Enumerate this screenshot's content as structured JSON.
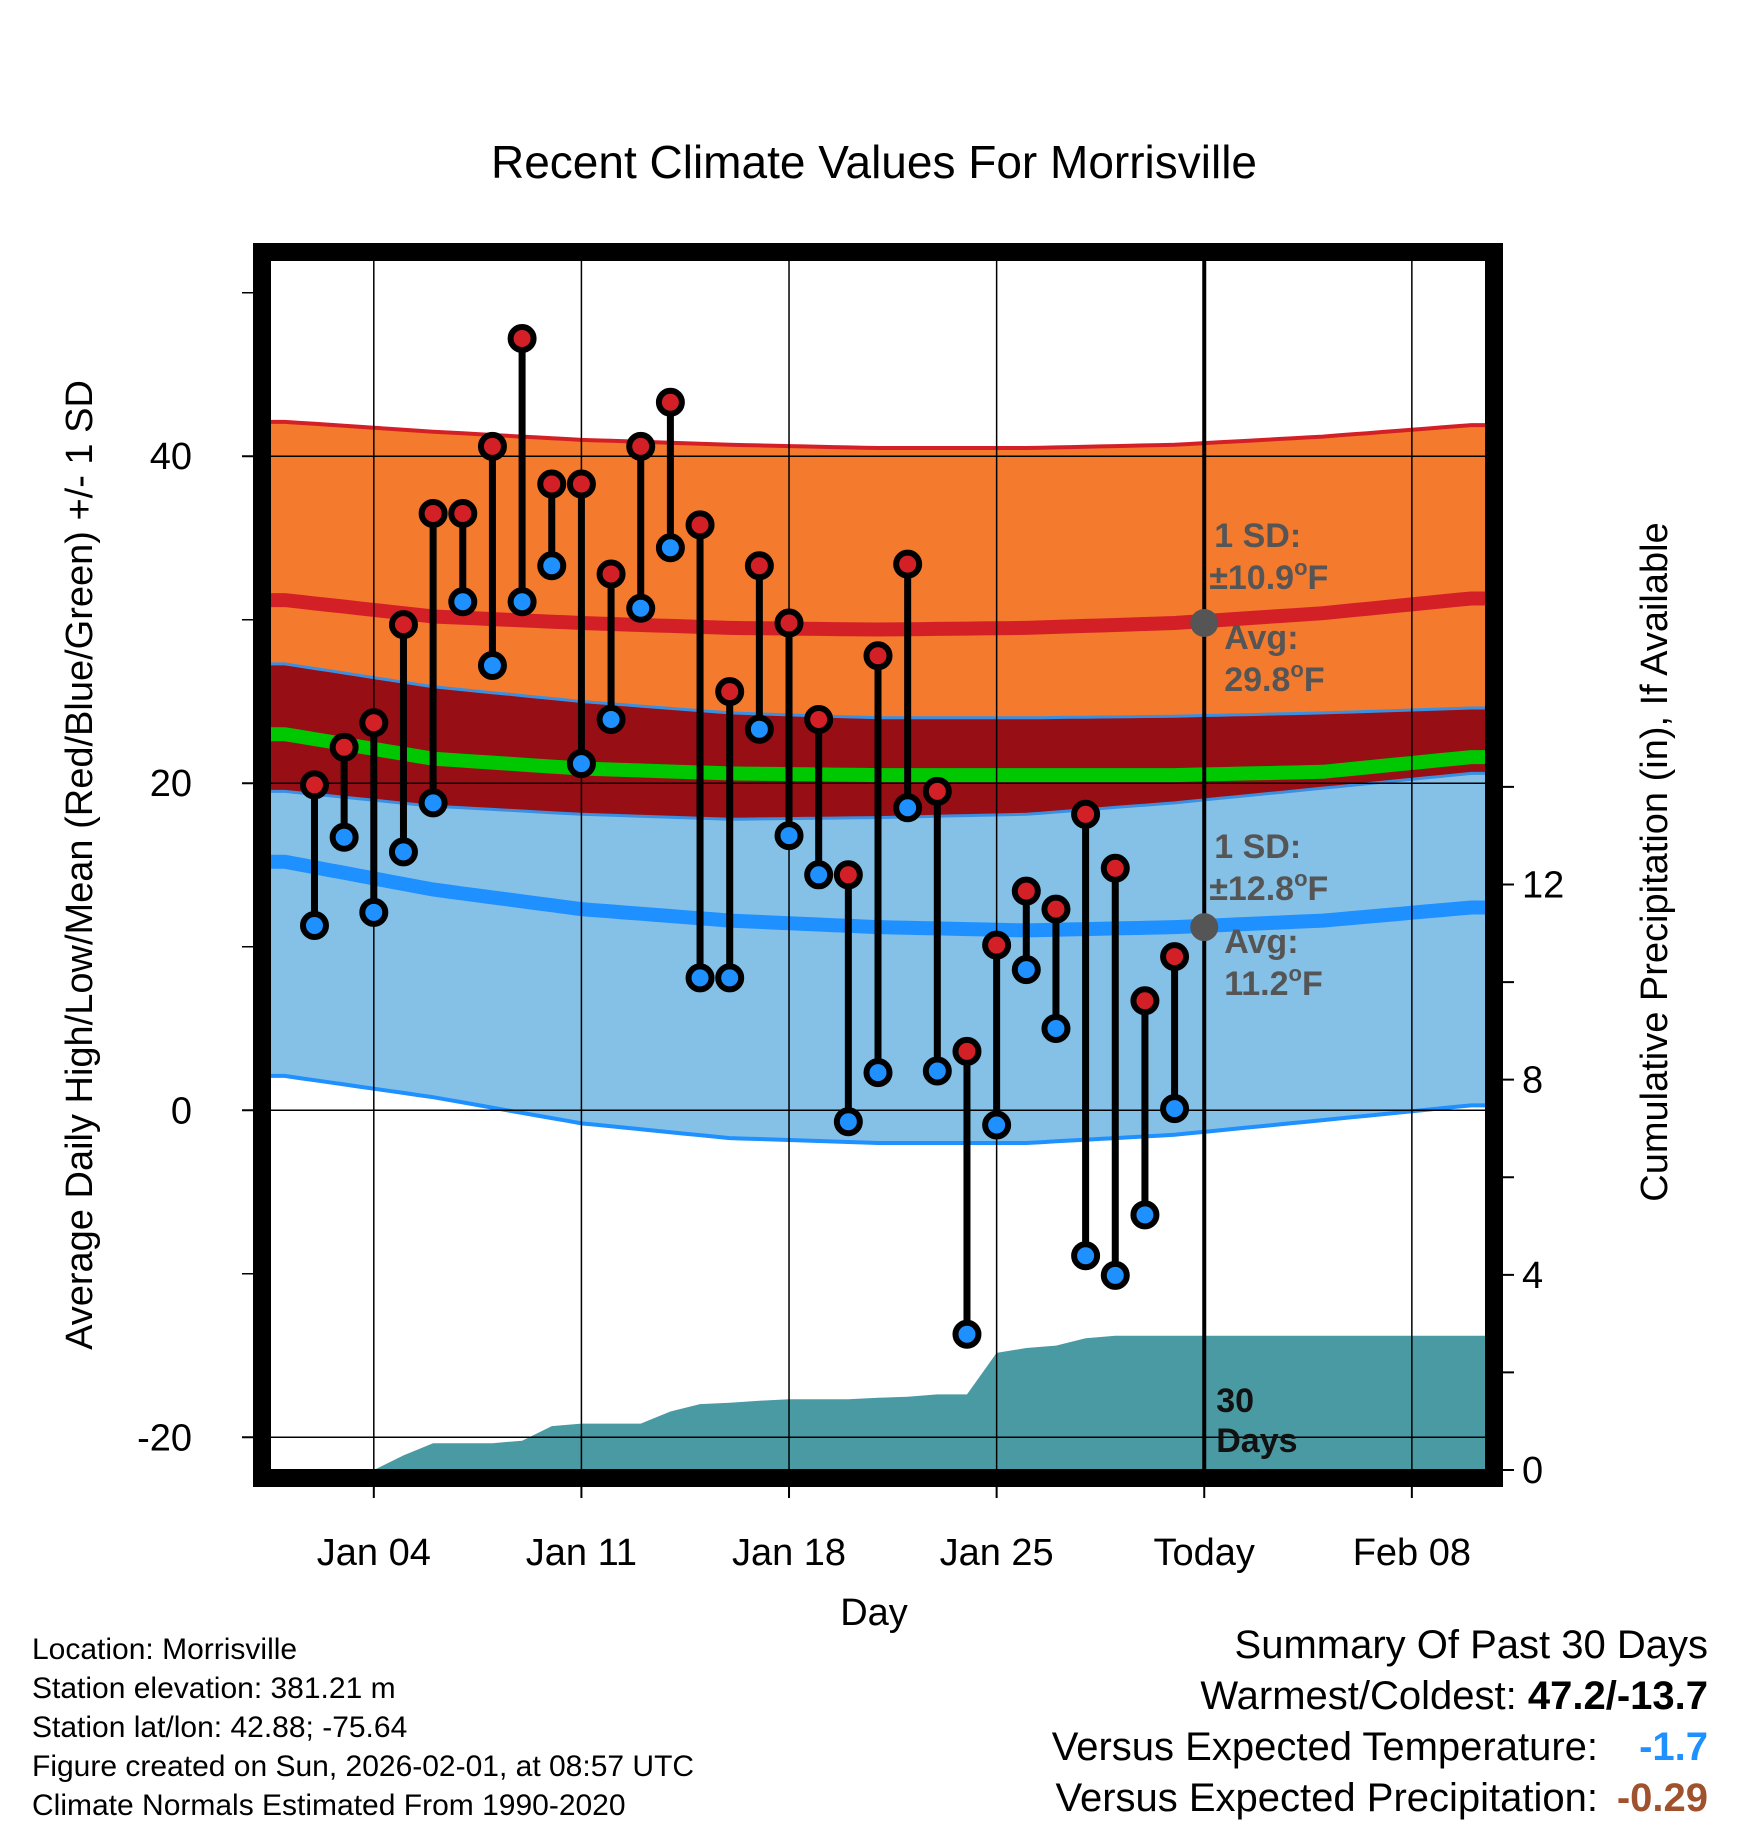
{
  "chart_data": {
    "type": "line",
    "title": "Recent Climate Values For Morrisville",
    "xlabel": "Day",
    "ylabel_left": "Average Daily High/Low/Mean (Red/Blue/Green) +/- 1 SD",
    "ylabel_right": "Cumulative Precipitation (in), If Available",
    "ylim_left": [
      -22,
      52
    ],
    "ylim_right": [
      0,
      24.8
    ],
    "yticks_left": [
      -20,
      0,
      20,
      40
    ],
    "yticks_right": [
      0,
      4,
      8,
      12
    ],
    "xlim_days": [
      -0.5,
      40.5
    ],
    "xtick_labels": [
      {
        "day": 3,
        "label": "Jan 04"
      },
      {
        "day": 10,
        "label": "Jan 11"
      },
      {
        "day": 17,
        "label": "Jan 18"
      },
      {
        "day": 24,
        "label": "Jan 25"
      },
      {
        "day": 31,
        "label": "Today"
      },
      {
        "day": 38,
        "label": "Feb 08"
      }
    ],
    "today_day": 31,
    "today_label": [
      "30",
      "Days"
    ],
    "normals": {
      "days": [
        0,
        5,
        10,
        15,
        20,
        25,
        30,
        35,
        40
      ],
      "high_avg": [
        31.2,
        30.2,
        29.8,
        29.5,
        29.4,
        29.5,
        29.8,
        30.4,
        31.3
      ],
      "high_upper": [
        42.1,
        41.5,
        41.0,
        40.7,
        40.5,
        40.5,
        40.7,
        41.2,
        41.9
      ],
      "high_lower": [
        27.3,
        25.9,
        25.0,
        24.3,
        24.0,
        24.0,
        24.1,
        24.3,
        24.6
      ],
      "mean_avg": [
        23.0,
        21.5,
        20.9,
        20.6,
        20.5,
        20.5,
        20.5,
        20.7,
        21.6
      ],
      "low_avg": [
        15.2,
        13.5,
        12.3,
        11.6,
        11.2,
        11.0,
        11.2,
        11.6,
        12.4
      ],
      "low_upper": [
        19.5,
        18.6,
        18.1,
        17.8,
        17.9,
        18.1,
        18.8,
        19.7,
        20.6
      ],
      "low_lower": [
        2.1,
        0.8,
        -0.8,
        -1.7,
        -2.0,
        -2.0,
        -1.5,
        -0.6,
        0.3
      ]
    },
    "series": [
      {
        "name": "Daily High",
        "color": "#d32027",
        "values": [
          19.9,
          22.2,
          23.7,
          29.7,
          36.5,
          36.5,
          40.6,
          47.2,
          38.3,
          38.3,
          32.8,
          40.6,
          43.3,
          35.8,
          25.6,
          33.3,
          29.8,
          23.9,
          14.4,
          27.8,
          33.4,
          19.5,
          3.6,
          10.1,
          13.4,
          12.3,
          18.1,
          14.8,
          6.7,
          9.4
        ]
      },
      {
        "name": "Daily Low",
        "color": "#1e90ff",
        "values": [
          11.3,
          16.7,
          12.1,
          15.8,
          18.8,
          31.1,
          27.2,
          31.1,
          33.3,
          21.2,
          23.9,
          30.7,
          34.4,
          8.1,
          8.1,
          23.3,
          16.8,
          14.4,
          -0.7,
          2.3,
          18.5,
          2.4,
          -13.7,
          -0.9,
          8.6,
          5.0,
          -8.9,
          -10.1,
          -6.4,
          0.1
        ]
      },
      {
        "name": "Cumulative Precipitation",
        "color": "#4a9aa3",
        "days": [
          1,
          3,
          4,
          5,
          7,
          8,
          9,
          10,
          11,
          12,
          13,
          14,
          15,
          16,
          17,
          18,
          19,
          20,
          21,
          22,
          23,
          24,
          25,
          26,
          27,
          28,
          29,
          30,
          31,
          40.5
        ],
        "values": [
          0.0,
          0.0,
          0.3,
          0.55,
          0.55,
          0.6,
          0.9,
          0.95,
          0.95,
          0.95,
          1.2,
          1.35,
          1.38,
          1.42,
          1.45,
          1.45,
          1.45,
          1.48,
          1.5,
          1.55,
          1.55,
          2.4,
          2.5,
          2.55,
          2.7,
          2.75,
          2.75,
          2.75,
          2.75,
          2.75
        ]
      }
    ],
    "annotations": {
      "high": {
        "sd_label": "1 SD:",
        "sd_value": "±10.9",
        "avg_label": "Avg:",
        "avg_value": "29.8",
        "unit": "F",
        "degree": "o"
      },
      "low": {
        "sd_label": "1 SD:",
        "sd_value": "±12.8",
        "avg_label": "Avg:",
        "avg_value": "11.2",
        "unit": "F",
        "degree": "o"
      }
    }
  },
  "footer": {
    "location": "Location: Morrisville",
    "elevation": "Station elevation: 381.21 m",
    "latlon": "Station lat/lon: 42.88; -75.64",
    "created": "Figure created on Sun, 2026-02-01, at 08:57 UTC",
    "normals": "Climate Normals Estimated From 1990-2020"
  },
  "summary": {
    "heading": "Summary Of Past 30 Days",
    "warmest_coldest_label": "Warmest/Coldest: ",
    "warmest_coldest_value": "47.2/-13.7",
    "temp_label": "Versus Expected Temperature:",
    "temp_value": "-1.7",
    "temp_color": "#1e90ff",
    "precip_label": "Versus Expected Precipitation:",
    "precip_value": "-0.29",
    "precip_color": "#a0522d"
  }
}
